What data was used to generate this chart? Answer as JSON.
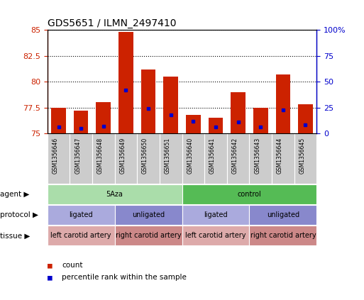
{
  "title": "GDS5651 / ILMN_2497410",
  "samples": [
    "GSM1356646",
    "GSM1356647",
    "GSM1356648",
    "GSM1356649",
    "GSM1356650",
    "GSM1356651",
    "GSM1356640",
    "GSM1356641",
    "GSM1356642",
    "GSM1356643",
    "GSM1356644",
    "GSM1356645"
  ],
  "count_values": [
    77.5,
    77.2,
    78.0,
    84.8,
    81.2,
    80.5,
    76.8,
    76.5,
    79.0,
    77.5,
    80.7,
    77.8
  ],
  "percentile_values": [
    6,
    5,
    7,
    42,
    24,
    18,
    12,
    6,
    11,
    6,
    23,
    8
  ],
  "y_min": 75,
  "y_max": 85,
  "y_ticks": [
    75,
    77.5,
    80,
    82.5,
    85
  ],
  "y_ticks_right": [
    0,
    25,
    50,
    75,
    100
  ],
  "y_ticks_right_labels": [
    "0",
    "25",
    "50",
    "75",
    "100%"
  ],
  "bar_color": "#cc2200",
  "percentile_color": "#0000cc",
  "agent_groups": [
    {
      "label": "5Aza",
      "start": 0,
      "end": 6,
      "color": "#aaddaa"
    },
    {
      "label": "control",
      "start": 6,
      "end": 12,
      "color": "#55bb55"
    }
  ],
  "protocol_groups": [
    {
      "label": "ligated",
      "start": 0,
      "end": 3,
      "color": "#aaaadd"
    },
    {
      "label": "unligated",
      "start": 3,
      "end": 6,
      "color": "#8888cc"
    },
    {
      "label": "ligated",
      "start": 6,
      "end": 9,
      "color": "#aaaadd"
    },
    {
      "label": "unligated",
      "start": 9,
      "end": 12,
      "color": "#8888cc"
    }
  ],
  "tissue_groups": [
    {
      "label": "left carotid artery",
      "start": 0,
      "end": 3,
      "color": "#ddaaaa"
    },
    {
      "label": "right carotid artery",
      "start": 3,
      "end": 6,
      "color": "#cc8888"
    },
    {
      "label": "left carotid artery",
      "start": 6,
      "end": 9,
      "color": "#ddaaaa"
    },
    {
      "label": "right carotid artery",
      "start": 9,
      "end": 12,
      "color": "#cc8888"
    }
  ],
  "sample_label_bg": "#cccccc",
  "row_labels": [
    "agent",
    "protocol",
    "tissue"
  ],
  "legend_items": [
    {
      "label": "count",
      "color": "#cc2200"
    },
    {
      "label": "percentile rank within the sample",
      "color": "#0000cc"
    }
  ]
}
